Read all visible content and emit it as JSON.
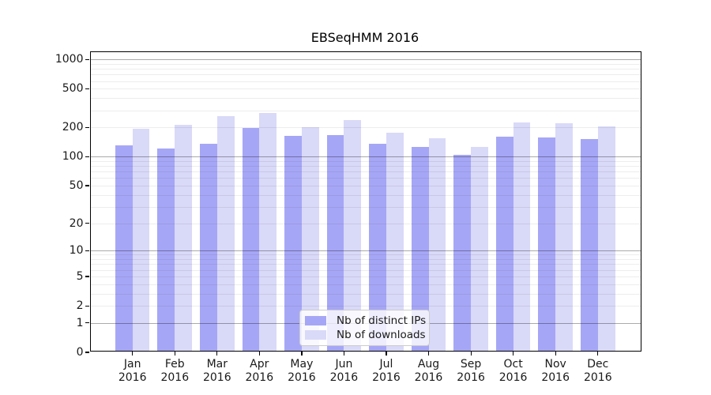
{
  "title": "EBSeqHMM 2016",
  "chart_data": {
    "type": "bar",
    "title": "EBSeqHMM 2016",
    "scale": "log1p",
    "categories": [
      "Jan",
      "Feb",
      "Mar",
      "Apr",
      "May",
      "Jun",
      "Jul",
      "Aug",
      "Sep",
      "Oct",
      "Nov",
      "Dec"
    ],
    "category_year": "2016",
    "series": [
      {
        "name": "Nb of distinct IPs",
        "color": "#a6a6f6",
        "values": [
          127,
          118,
          132,
          192,
          157,
          162,
          131,
          122,
          101,
          156,
          153,
          146
        ]
      },
      {
        "name": "Nb of downloads",
        "color": "#d9d9f8",
        "values": [
          187,
          204,
          252,
          272,
          196,
          228,
          170,
          150,
          121,
          216,
          212,
          197
        ]
      }
    ],
    "y_ticks": [
      0,
      1,
      2,
      5,
      10,
      20,
      50,
      100,
      200,
      500,
      1000
    ],
    "ylim": [
      0,
      1190
    ],
    "xlabel": "",
    "ylabel": "",
    "grid": "horizontal, log minor lines, darker at powers of 10",
    "legend_position": "bottom-center"
  }
}
